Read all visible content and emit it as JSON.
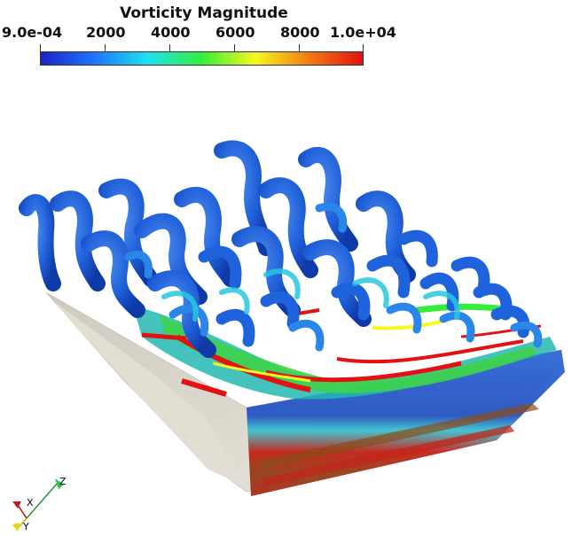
{
  "legend": {
    "title": "Vorticity Magnitude",
    "ticks": [
      "9.0e-04",
      "2000",
      "4000",
      "6000",
      "8000",
      "1.0e+04"
    ],
    "range": [
      0.0009,
      10000
    ],
    "colormap": [
      "#1a24c8",
      "#1f74ff",
      "#1fe3ee",
      "#34ee3a",
      "#f6f91c",
      "#f27a12",
      "#e31111"
    ]
  },
  "axes": {
    "x": "X",
    "y": "Y",
    "z": "Z"
  },
  "colors": {
    "wall": "#ddd8cc",
    "vortex_low": "#1f5fd8",
    "vortex_mid": "#22c3e8",
    "vortex_high": "#e31111"
  }
}
